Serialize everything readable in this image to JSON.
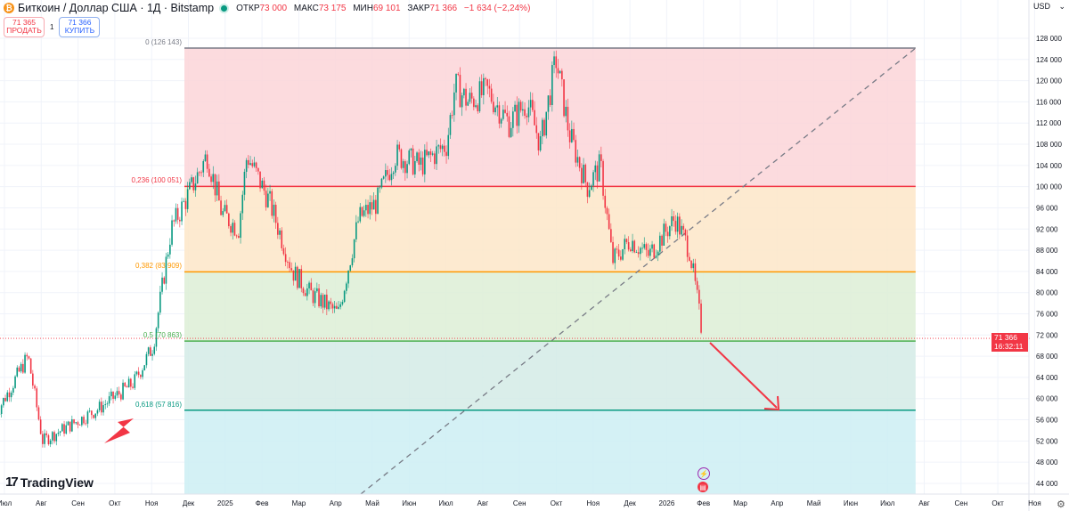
{
  "header": {
    "symbol_icon": "bitcoin-icon",
    "title": "Биткоин / Доллар США · 1Д · Bitstamp",
    "status_color": "#089981",
    "ohlc": [
      {
        "label": "ОТКР",
        "value": "73 000"
      },
      {
        "label": "МАКС",
        "value": "73 175"
      },
      {
        "label": "МИН",
        "value": "69 101"
      },
      {
        "label": "ЗАКР",
        "value": "71 366"
      }
    ],
    "change": "−1 634 (−2,24%)"
  },
  "trade": {
    "sell_price": "71 365",
    "sell_label": "ПРОДАТЬ",
    "spread": "1",
    "buy_price": "71 366",
    "buy_label": "КУПИТЬ"
  },
  "currency": "USD",
  "logo": "TradingView",
  "last_price": {
    "value": "71 366",
    "countdown": "16:32:11",
    "color": "#f23645"
  },
  "y_axis": {
    "ticks": [
      128000,
      124000,
      120000,
      116000,
      112000,
      108000,
      104000,
      100000,
      96000,
      92000,
      88000,
      84000,
      80000,
      76000,
      72000,
      68000,
      64000,
      60000,
      56000,
      52000,
      48000,
      44000
    ],
    "labels": [
      "128 000",
      "124 000",
      "120 000",
      "116 000",
      "112 000",
      "108 000",
      "104 000",
      "100 000",
      "96 000",
      "92 000",
      "88 000",
      "84 000",
      "80 000",
      "76 000",
      "72 000",
      "68 000",
      "64 000",
      "60 000",
      "56 000",
      "52 000",
      "48 000",
      "44 000"
    ]
  },
  "x_axis": {
    "labels": [
      "Июл",
      "Авг",
      "Сен",
      "Окт",
      "Ноя",
      "Дек",
      "2025",
      "Фев",
      "Мар",
      "Апр",
      "Май",
      "Июн",
      "Июл",
      "Авг",
      "Сен",
      "Окт",
      "Ноя",
      "Дек",
      "2026",
      "Фев",
      "Мар",
      "Апр",
      "Май",
      "Июн",
      "Июл",
      "Авг",
      "Сен",
      "Окт",
      "Ноя"
    ],
    "start": "2024-07-01"
  },
  "fibonacci": {
    "range": [
      "2024-12-01",
      "2026-08-01"
    ],
    "levels": [
      {
        "ratio": "0",
        "price": 126143,
        "label": "0 (126 143)",
        "color": "#787b86",
        "fill": "#fbd5d8"
      },
      {
        "ratio": "0,236",
        "price": 100051,
        "label": "0,236 (100 051)",
        "color": "#f23645",
        "fill": "#fde6c8"
      },
      {
        "ratio": "0,382",
        "price": 83909,
        "label": "0,382 (83 909)",
        "color": "#ff9800",
        "fill": "#ddefd6"
      },
      {
        "ratio": "0,5",
        "price": 70863,
        "label": "0,5 (70 863)",
        "color": "#4caf50",
        "fill": "#d3ebe6"
      },
      {
        "ratio": "0,618",
        "price": 57816,
        "label": "0,618 (57 816)",
        "color": "#089981",
        "fill": "#cdeff3"
      }
    ]
  },
  "price_path": [
    [
      "2024-06-27",
      57000
    ],
    [
      "2024-07-24",
      68000
    ],
    [
      "2024-08-05",
      52000
    ],
    [
      "2024-09-05",
      56000
    ],
    [
      "2024-09-20",
      58000
    ],
    [
      "2024-10-20",
      63000
    ],
    [
      "2024-11-05",
      70000
    ],
    [
      "2024-11-20",
      92000
    ],
    [
      "2024-12-01",
      97000
    ],
    [
      "2024-12-20",
      106000
    ],
    [
      "2025-01-01",
      95000
    ],
    [
      "2025-01-15",
      92000
    ],
    [
      "2025-01-22",
      106000
    ],
    [
      "2025-02-10",
      97000
    ],
    [
      "2025-03-01",
      84000
    ],
    [
      "2025-03-15",
      80000
    ],
    [
      "2025-04-08",
      76000
    ],
    [
      "2025-04-25",
      94000
    ],
    [
      "2025-05-10",
      97000
    ],
    [
      "2025-05-25",
      106000
    ],
    [
      "2025-06-15",
      104000
    ],
    [
      "2025-07-07",
      108000
    ],
    [
      "2025-07-14",
      119000
    ],
    [
      "2025-07-25",
      116000
    ],
    [
      "2025-08-10",
      118000
    ],
    [
      "2025-08-28",
      112000
    ],
    [
      "2025-09-12",
      116000
    ],
    [
      "2025-09-23",
      108000
    ],
    [
      "2025-10-06",
      124000
    ],
    [
      "2025-10-17",
      110000
    ],
    [
      "2025-11-01",
      100000
    ],
    [
      "2025-11-12",
      104000
    ],
    [
      "2025-11-22",
      86000
    ],
    [
      "2025-12-07",
      90000
    ],
    [
      "2025-12-22",
      87000
    ],
    [
      "2026-01-13",
      94000
    ],
    [
      "2026-01-25",
      88000
    ],
    [
      "2026-02-01",
      78000
    ],
    [
      "2026-02-05",
      71366
    ]
  ],
  "colors": {
    "up": "#089981",
    "down": "#f23645",
    "arrow": "#f23645"
  }
}
